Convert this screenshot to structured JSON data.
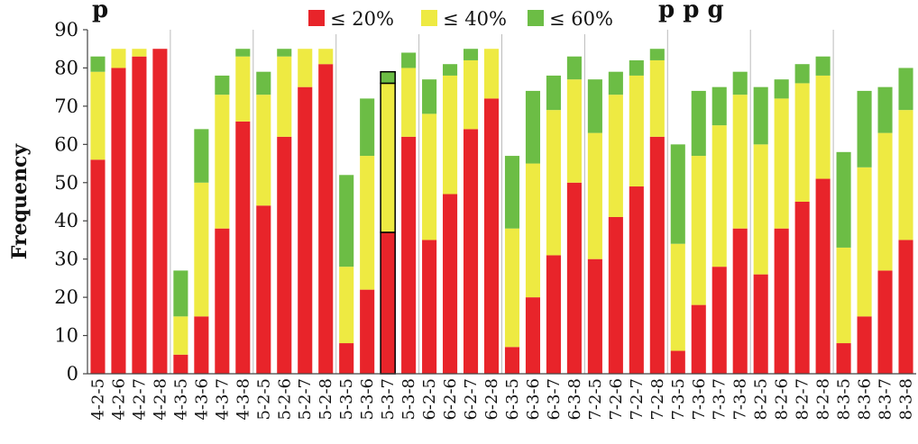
{
  "chart_data": {
    "type": "bar",
    "stacked": true,
    "title_fragments": [
      "p",
      "p p g"
    ],
    "ylabel": "Frequency",
    "ylim": [
      0,
      90
    ],
    "yticks": [
      0,
      10,
      20,
      30,
      40,
      50,
      60,
      70,
      80,
      90
    ],
    "grid": "vertical group separators",
    "legend_position": "top-center",
    "categories": [
      "4-2-5",
      "4-2-6",
      "4-2-7",
      "4-2-8",
      "4-3-5",
      "4-3-6",
      "4-3-7",
      "4-3-8",
      "5-2-5",
      "5-2-6",
      "5-2-7",
      "5-2-8",
      "5-3-5",
      "5-3-6",
      "5-3-7",
      "5-3-8",
      "6-2-5",
      "6-2-6",
      "6-2-7",
      "6-2-8",
      "6-3-5",
      "6-3-6",
      "6-3-7",
      "6-3-8",
      "7-2-5",
      "7-2-6",
      "7-2-7",
      "7-2-8",
      "7-3-5",
      "7-3-6",
      "7-3-7",
      "7-3-8",
      "8-2-5",
      "8-2-6",
      "8-2-7",
      "8-2-8",
      "8-3-5",
      "8-3-6",
      "8-3-7",
      "8-3-8"
    ],
    "highlighted_category": "5-3-7",
    "series": [
      {
        "name": "≤ 20%",
        "color": "#e8242a",
        "values": [
          56,
          80,
          83,
          85,
          5,
          15,
          38,
          66,
          44,
          62,
          75,
          81,
          8,
          22,
          37,
          62,
          35,
          47,
          64,
          72,
          7,
          20,
          31,
          50,
          30,
          41,
          49,
          62,
          6,
          18,
          28,
          38,
          26,
          38,
          45,
          51,
          8,
          15,
          27,
          35
        ]
      },
      {
        "name": "≤ 40%",
        "color": "#eeea42",
        "values": [
          23,
          5,
          2,
          0,
          10,
          35,
          35,
          17,
          29,
          21,
          10,
          4,
          20,
          35,
          39,
          18,
          33,
          31,
          18,
          13,
          31,
          35,
          38,
          27,
          33,
          32,
          29,
          20,
          28,
          39,
          37,
          35,
          34,
          34,
          31,
          27,
          25,
          39,
          36,
          34
        ]
      },
      {
        "name": "≤ 60%",
        "color": "#6cbd45",
        "values": [
          4,
          0,
          0,
          0,
          12,
          14,
          5,
          2,
          6,
          2,
          0,
          0,
          24,
          15,
          3,
          4,
          9,
          3,
          3,
          0,
          19,
          19,
          9,
          6,
          14,
          6,
          4,
          3,
          26,
          17,
          10,
          6,
          15,
          5,
          5,
          5,
          25,
          20,
          12,
          11
        ]
      }
    ]
  }
}
